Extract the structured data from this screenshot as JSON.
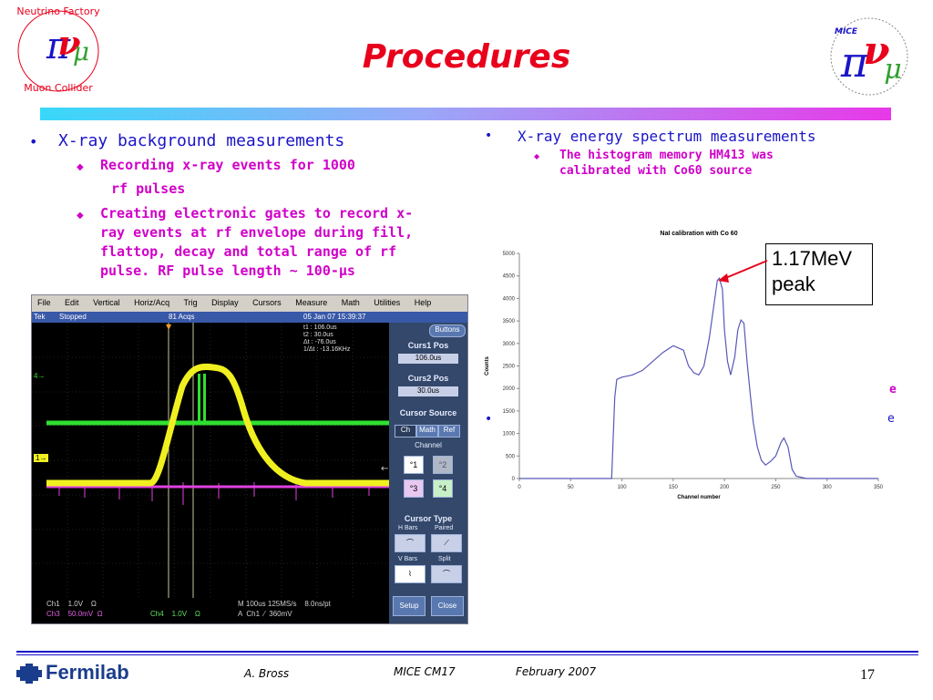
{
  "slide": {
    "title": "Procedures",
    "page_number": "17"
  },
  "left_column": {
    "heading": "X-ray background measurements",
    "sub1_line1": "Recording x-ray events for 1000",
    "sub1_line2": "rf pulses",
    "sub2_line1": "Creating electronic gates to record x-",
    "sub2_line2": "ray events at rf envelope during fill,",
    "sub2_line3": "flattop, decay and total range of rf",
    "sub2_line4": "pulse. RF pulse length ~ 100-µs"
  },
  "right_column": {
    "heading": "X-ray energy spectrum measurements",
    "sub1_line1": "The histogram memory HM413 was",
    "sub1_line2": "calibrated with Co60 source"
  },
  "callout": {
    "line1": "1.17MeV",
    "line2": "peak"
  },
  "logos": {
    "left_top": "Neutrino Factory",
    "left_bottom": "Muon Collider",
    "right": "MICE"
  },
  "scope": {
    "menu": [
      "File",
      "Edit",
      "Vertical",
      "Horiz/Acq",
      "Trig",
      "Display",
      "Cursors",
      "Measure",
      "Math",
      "Utilities",
      "Help"
    ],
    "status_left": "Tek",
    "status_state": "Stopped",
    "status_acqs": "81 Acqs",
    "status_date": "05 Jan 07 15:39:37",
    "readout": [
      "t1 : 106.0us",
      "t2 : 30.0us",
      "Δt : -76.0us",
      "1/Δt : -13.16KHz"
    ],
    "buttons_label": "Buttons",
    "curs1_label": "Curs1 Pos",
    "curs1_value": "106.0us",
    "curs2_label": "Curs2 Pos",
    "curs2_value": "30.0us",
    "cursor_source_label": "Cursor Source",
    "source_tabs": [
      "Ch",
      "Math",
      "Ref"
    ],
    "channel_label": "Channel",
    "channels": [
      "1",
      "2",
      "3",
      "4"
    ],
    "cursor_type_label": "Cursor Type",
    "type_hbars": "H Bars",
    "type_paired": "Paired",
    "type_vbars": "V Bars",
    "type_split": "Split",
    "setup_label": "Setup",
    "close_label": "Close",
    "bottom_ch1": "Ch1    1.0V    Ω",
    "bottom_ch3": "Ch3    50.0mV  Ω",
    "bottom_ch4": "Ch4    1.0V    Ω",
    "bottom_horiz": "M 100us 125MS/s    8.0ns/pt",
    "bottom_trig": "A  Ch1  ⁄  360mV",
    "marker_ch4": "4",
    "marker_ch1": "1"
  },
  "footer": {
    "lab": "Fermilab",
    "author": "A. Bross",
    "meeting": "MICE CM17",
    "date": "February 2007"
  },
  "colors": {
    "title": "#e8001c",
    "heading": "#1a14c8",
    "sub": "#d000c8",
    "trace_yellow": "#f0f020",
    "trace_green": "#30e030",
    "trace_magenta": "#e040e0",
    "chart_line": "#5858b8"
  },
  "chart_data": {
    "type": "line",
    "title": "NaI calibration with Co 60",
    "xlabel": "Channel number",
    "ylabel": "Counts",
    "xlim": [
      0,
      350
    ],
    "ylim": [
      0,
      5000
    ],
    "xticks": [
      0,
      50,
      100,
      150,
      200,
      250,
      300,
      350
    ],
    "yticks": [
      0,
      500,
      1000,
      1500,
      2000,
      2500,
      3000,
      3500,
      4000,
      4500,
      5000
    ],
    "grid": false,
    "series": [
      {
        "x": [
          0,
          90,
          93,
          95,
          100,
          110,
          120,
          130,
          140,
          150,
          160,
          165,
          170,
          175,
          180,
          185,
          190,
          193,
          195,
          198,
          200,
          203,
          206,
          210,
          213,
          216,
          219,
          222,
          225,
          228,
          232,
          236,
          240,
          245,
          250,
          255,
          258,
          262,
          266,
          270,
          280,
          300,
          350
        ],
        "y": [
          0,
          0,
          1800,
          2200,
          2250,
          2300,
          2400,
          2600,
          2800,
          2950,
          2850,
          2500,
          2350,
          2300,
          2500,
          3100,
          3900,
          4400,
          4450,
          4200,
          3300,
          2600,
          2300,
          2700,
          3300,
          3520,
          3450,
          2600,
          1900,
          1250,
          700,
          400,
          300,
          380,
          500,
          800,
          900,
          700,
          200,
          50,
          0,
          0,
          0
        ]
      }
    ]
  }
}
